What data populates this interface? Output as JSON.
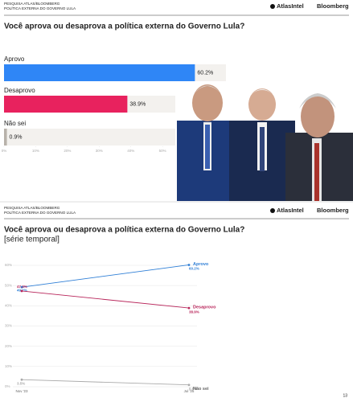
{
  "slides": [
    {
      "survey": "PESQUISA ATLAS/BLOOMBERG",
      "topic": "POLÍTICA EXTERNA DO GOVERNO LULA",
      "brand1": "AtlasIntel",
      "brand2": "Bloomberg"
    },
    {
      "survey": "PESQUISA ATLAS/BLOOMBERG",
      "topic": "POLÍTICA EXTERNA DO GOVERNO LULA",
      "brand1": "AtlasIntel",
      "brand2": "Bloomberg"
    }
  ],
  "page_number": "13",
  "chart_data": [
    {
      "type": "hbar",
      "title": "Você aprova ou desaprova a política externa do Governo Lula?",
      "categories": [
        "Aprovo",
        "Desaprovo",
        "Não sei"
      ],
      "values": [
        60.2,
        38.9,
        0.9
      ],
      "value_labels": [
        "60.2%",
        "38.9%",
        "0.9%"
      ],
      "colors": [
        "#2f86f6",
        "#e8225e",
        "#b8b2aa"
      ],
      "xlim": [
        0,
        70
      ],
      "xticks": [
        {
          "value": 0,
          "label": "0%"
        },
        {
          "value": 10,
          "label": "10%"
        },
        {
          "value": 20,
          "label": "20%"
        },
        {
          "value": 30,
          "label": "30%"
        },
        {
          "value": 40,
          "label": "40%"
        },
        {
          "value": 50,
          "label": "50%"
        }
      ]
    },
    {
      "type": "line",
      "title": "Você aprova ou desaprova a política externa do Governo Lula?",
      "subtitle": "[série temporal]",
      "categories": [
        "Nov '23",
        "Jul '25"
      ],
      "series": [
        {
          "name": "Aprovo",
          "color": "#2f7fd6",
          "values": [
            49.2,
            60.2
          ],
          "value_labels": [
            "49.2%",
            "60.2%"
          ]
        },
        {
          "name": "Desaprovo",
          "color": "#b8255a",
          "values": [
            47.3,
            38.9
          ],
          "value_labels": [
            "47.3%",
            "38.9%"
          ]
        },
        {
          "name": "Não sei",
          "color": "#aaaaaa",
          "values": [
            3.5,
            0.9
          ],
          "value_labels": [
            "3.5%",
            "0.9%"
          ]
        }
      ],
      "ylim": [
        0,
        65
      ],
      "yticks": [
        {
          "value": 0,
          "label": "0%"
        },
        {
          "value": 10,
          "label": "10%"
        },
        {
          "value": 20,
          "label": "20%"
        },
        {
          "value": 30,
          "label": "30%"
        },
        {
          "value": 40,
          "label": "40%"
        },
        {
          "value": 50,
          "label": "50%"
        },
        {
          "value": 60,
          "label": "60%"
        }
      ],
      "grid": true
    }
  ]
}
